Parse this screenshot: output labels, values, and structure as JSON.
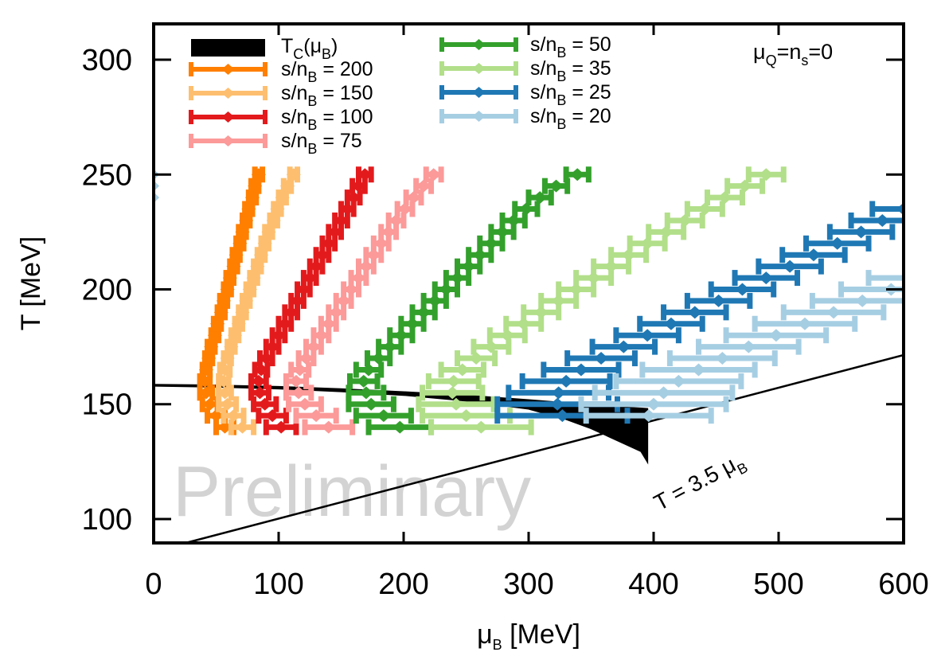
{
  "chart_data": {
    "type": "scatter",
    "title": "",
    "xlabel": "μ_B [MeV]",
    "xlabel_main": "μ",
    "xlabel_sub": "B",
    "xlabel_rest": " [MeV]",
    "ylabel": "T [MeV]",
    "xlim": [
      0,
      600
    ],
    "ylim": [
      89.6,
      315.6
    ],
    "xticks": [
      0,
      100,
      200,
      300,
      400,
      500,
      600
    ],
    "yticks": [
      100,
      150,
      200,
      250,
      300
    ],
    "grid": false,
    "legend_placement": "top-left",
    "annotations": {
      "condition": {
        "main": "μ",
        "sub1": "Q",
        "mid": "=n",
        "sub2": "s",
        "end": "=0"
      },
      "watermark": "Preliminary",
      "line_label": {
        "main": "T = 3.5 μ",
        "sub": "B"
      },
      "line_slope": 3.5
    },
    "tc_band": {
      "label_main": "T",
      "label_sub": "C",
      "label_rest": "(μ",
      "label_sub2": "B",
      "label_end": ")",
      "color": "#000000",
      "mu": [
        0,
        50,
        100,
        150,
        200,
        250,
        300,
        330,
        350,
        370,
        390,
        395
      ],
      "upper": [
        158.5,
        158.2,
        157.6,
        156.6,
        155.3,
        153.8,
        151.8,
        150.5,
        149.5,
        148.8,
        148.2,
        148.0
      ],
      "lower": [
        158.0,
        157.6,
        156.8,
        155.6,
        154.0,
        151.5,
        148.0,
        143.5,
        139.5,
        134.5,
        129.5,
        125.0
      ]
    },
    "series": [
      {
        "name": "s/n_B = 200",
        "label_value": "200",
        "color": "#ff7f00",
        "T_start": 140,
        "T_step": 5,
        "mu": [
          57,
          50,
          45,
          42,
          41,
          42,
          44,
          46,
          49,
          51,
          54,
          56,
          59,
          61,
          64,
          66,
          69,
          71,
          74,
          76,
          79,
          81,
          84
        ],
        "err": [
          7,
          7,
          6,
          5,
          4,
          3,
          3,
          3,
          3,
          3,
          3,
          3,
          3,
          3,
          3,
          3,
          3,
          3,
          3,
          3,
          3,
          3,
          3
        ]
      },
      {
        "name": "s/n_B = 150",
        "label_value": "150",
        "color": "#fdbf6f",
        "T_start": 140,
        "T_step": 5,
        "mu": [
          71,
          64,
          59,
          57,
          56,
          57,
          59,
          62,
          65,
          68,
          71,
          74,
          77,
          80,
          83,
          86,
          89,
          92,
          96,
          99,
          103,
          107,
          112
        ],
        "err": [
          9,
          8,
          7,
          5,
          4,
          4,
          3,
          3,
          3,
          3,
          3,
          3,
          3,
          3,
          3,
          3,
          3,
          3,
          3,
          3,
          3,
          3,
          3
        ]
      },
      {
        "name": "s/n_B = 100",
        "label_value": "100",
        "color": "#e31a1c",
        "T_start": 140,
        "T_step": 5,
        "mu": [
          102,
          95,
          89,
          85,
          84,
          86,
          90,
          95,
          100,
          105,
          110,
          115,
          120,
          125,
          130,
          135,
          140,
          145,
          150,
          155,
          160,
          164,
          169
        ],
        "err": [
          12,
          11,
          9,
          7,
          6,
          5,
          5,
          5,
          5,
          5,
          5,
          5,
          5,
          5,
          5,
          5,
          5,
          5,
          5,
          5,
          5,
          5,
          5
        ]
      },
      {
        "name": "s/n_B = 75",
        "label_value": "75",
        "color": "#fb9a99",
        "T_start": 140,
        "T_step": 5,
        "mu": [
          140,
          130,
          121,
          116,
          114,
          117,
          122,
          128,
          134,
          140,
          146,
          152,
          158,
          164,
          170,
          176,
          182,
          188,
          194,
          201,
          208,
          216,
          224
        ],
        "err": [
          19,
          16,
          13,
          10,
          8,
          7,
          6,
          6,
          6,
          6,
          6,
          6,
          6,
          6,
          6,
          6,
          6,
          6,
          6,
          6,
          6,
          6,
          6
        ]
      },
      {
        "name": "s/n_B = 50",
        "label_value": "50",
        "color": "#33a02c",
        "T_start": 140,
        "T_step": 5,
        "mu": [
          197,
          184,
          174,
          170,
          168,
          172,
          180,
          189,
          198,
          207,
          216,
          225,
          234,
          243,
          252,
          261,
          270,
          279,
          288,
          298,
          309,
          322,
          339
        ],
        "err": [
          25,
          22,
          18,
          14,
          11,
          10,
          9,
          9,
          9,
          9,
          9,
          9,
          9,
          9,
          9,
          9,
          9,
          9,
          9,
          9,
          9,
          9,
          9
        ]
      },
      {
        "name": "s/n_B = 35",
        "label_value": "35",
        "color": "#b2df8a",
        "T_start": 140,
        "T_step": 5,
        "mu": [
          262,
          250,
          242,
          239,
          240,
          247,
          258,
          270,
          283,
          296,
          310,
          324,
          338,
          352,
          366,
          380,
          395,
          410,
          425,
          441,
          457,
          473,
          490
        ],
        "err": [
          40,
          35,
          30,
          24,
          20,
          17,
          15,
          14,
          14,
          14,
          14,
          14,
          14,
          14,
          14,
          14,
          14,
          14,
          14,
          14,
          14,
          14,
          14
        ]
      },
      {
        "name": "s/n_B = 25",
        "label_value": "25",
        "color": "#1f78b4",
        "T_start": 145,
        "T_step": 5,
        "mu": [
          327,
          323,
          324,
          330,
          342,
          358,
          376,
          395,
          414,
          433,
          452,
          471,
          490,
          509,
          528,
          547,
          566,
          583,
          600
        ],
        "err": [
          52,
          48,
          40,
          35,
          30,
          27,
          25,
          25,
          25,
          25,
          25,
          25,
          25,
          25,
          25,
          25,
          25,
          25,
          25
        ]
      },
      {
        "name": "s/n_B = 20",
        "label_value": "20",
        "color": "#a6cee3",
        "T_start": 145,
        "T_step": 5,
        "mu": [
          396,
          400,
          408,
          420,
          436,
          455,
          476,
          498,
          521,
          544,
          567,
          590,
          612
        ],
        "err": [
          50,
          58,
          55,
          50,
          45,
          42,
          40,
          40,
          40,
          40,
          40,
          40,
          40
        ]
      }
    ],
    "outlier_series": {
      "color": "#a6cee3",
      "mu": [
        0,
        0,
        0
      ],
      "T": [
        240,
        245,
        250
      ],
      "note": "points at left edge"
    }
  }
}
